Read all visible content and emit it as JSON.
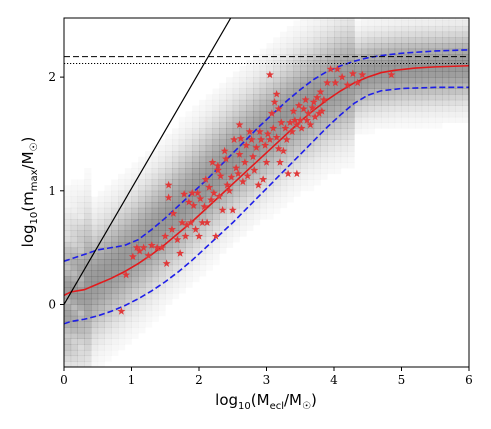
{
  "chart_data": {
    "type": "scatter",
    "title": "",
    "xlabel": {
      "base": "log",
      "sub": "10",
      "open": "(M",
      "subscript": "ecl",
      "slash": "/M",
      "sun": "☉",
      "close": ")"
    },
    "ylabel": {
      "base": "log",
      "sub": "10",
      "open": "(m",
      "subscript": "max",
      "slash": "/M",
      "sun": "☉",
      "close": ")"
    },
    "xlim": [
      0,
      6
    ],
    "ylim": [
      -0.55,
      2.52
    ],
    "xticks": [
      "0",
      "1",
      "2",
      "3",
      "4",
      "5",
      "6"
    ],
    "yticks": [
      "0",
      "1",
      "2"
    ],
    "grid": false,
    "legend": "none",
    "colors": {
      "median": "#e31a1c",
      "band": "#1f1fe8",
      "stars": "#e03a3a",
      "identity": "#000000",
      "density": "#777777"
    },
    "density_background": {
      "description_values": "grey 2D histogram of simulated clusters, darkest along the median ridge",
      "center": [
        [
          0,
          0.05
        ],
        [
          0.5,
          0.22
        ],
        [
          1,
          0.45
        ],
        [
          1.5,
          0.72
        ],
        [
          2,
          1.0
        ],
        [
          2.5,
          1.28
        ],
        [
          3,
          1.52
        ],
        [
          3.5,
          1.74
        ],
        [
          4,
          1.92
        ],
        [
          4.5,
          2.03
        ],
        [
          5,
          2.07
        ],
        [
          6,
          2.1
        ]
      ]
    },
    "series": [
      {
        "kind": "line",
        "style": "solid",
        "color": "#e31a1c",
        "x": [
          0,
          0.1,
          0.2,
          0.3,
          0.5,
          0.7,
          0.9,
          1.1,
          1.3,
          1.5,
          1.7,
          1.9,
          2.1,
          2.3,
          2.5,
          2.7,
          2.9,
          3.1,
          3.3,
          3.5,
          3.7,
          3.9,
          4.1,
          4.3,
          4.5,
          4.7,
          4.9,
          5.2,
          5.5,
          6.0
        ],
        "y": [
          0.08,
          0.11,
          0.12,
          0.13,
          0.18,
          0.23,
          0.29,
          0.36,
          0.44,
          0.53,
          0.63,
          0.73,
          0.84,
          0.95,
          1.06,
          1.17,
          1.28,
          1.39,
          1.5,
          1.61,
          1.71,
          1.8,
          1.88,
          1.95,
          2.0,
          2.04,
          2.06,
          2.08,
          2.09,
          2.1
        ]
      },
      {
        "kind": "line",
        "style": "dashed",
        "color": "#1f1fe8",
        "x": [
          0,
          0.1,
          0.3,
          0.5,
          0.7,
          0.9,
          1.1,
          1.3,
          1.5,
          1.7,
          1.9,
          2.1,
          2.3,
          2.5,
          2.7,
          2.9,
          3.1,
          3.3,
          3.5,
          3.7,
          3.9,
          4.1,
          4.3,
          4.5,
          4.7,
          5.0,
          5.5,
          6.0
        ],
        "y": [
          0.38,
          0.4,
          0.44,
          0.48,
          0.5,
          0.52,
          0.57,
          0.66,
          0.76,
          0.87,
          0.98,
          1.09,
          1.21,
          1.33,
          1.45,
          1.57,
          1.68,
          1.79,
          1.89,
          1.98,
          2.05,
          2.1,
          2.14,
          2.17,
          2.19,
          2.21,
          2.23,
          2.24
        ]
      },
      {
        "kind": "line",
        "style": "dashed",
        "color": "#1f1fe8",
        "x": [
          0,
          0.1,
          0.3,
          0.5,
          0.7,
          0.9,
          1.1,
          1.3,
          1.5,
          1.7,
          1.9,
          2.1,
          2.3,
          2.5,
          2.7,
          2.9,
          3.1,
          3.3,
          3.5,
          3.7,
          3.9,
          4.1,
          4.3,
          4.5,
          4.7,
          5.0,
          5.5,
          6.0
        ],
        "y": [
          -0.17,
          -0.15,
          -0.13,
          -0.1,
          -0.06,
          -0.01,
          0.05,
          0.12,
          0.2,
          0.29,
          0.39,
          0.5,
          0.61,
          0.72,
          0.84,
          0.96,
          1.08,
          1.2,
          1.32,
          1.44,
          1.56,
          1.67,
          1.77,
          1.84,
          1.88,
          1.9,
          1.91,
          1.91
        ]
      },
      {
        "kind": "line",
        "style": "solid",
        "color": "#000000",
        "x": [
          0,
          2.47
        ],
        "y": [
          0,
          2.52
        ]
      },
      {
        "kind": "hline",
        "style": "dashed",
        "color": "#000000",
        "y": 2.18
      },
      {
        "kind": "hline",
        "style": "dotted",
        "color": "#000000",
        "y": 2.12
      },
      {
        "kind": "scatter",
        "marker": "star",
        "color": "#e03a3a",
        "points": [
          [
            0.85,
            -0.06
          ],
          [
            0.92,
            0.26
          ],
          [
            1.02,
            0.42
          ],
          [
            1.08,
            0.5
          ],
          [
            1.12,
            0.47
          ],
          [
            1.18,
            0.5
          ],
          [
            1.25,
            0.43
          ],
          [
            1.3,
            0.52
          ],
          [
            1.38,
            0.5
          ],
          [
            1.45,
            0.5
          ],
          [
            1.5,
            0.6
          ],
          [
            1.52,
            0.36
          ],
          [
            1.55,
            0.94
          ],
          [
            1.55,
            1.05
          ],
          [
            1.6,
            0.66
          ],
          [
            1.62,
            0.8
          ],
          [
            1.68,
            0.57
          ],
          [
            1.72,
            0.45
          ],
          [
            1.75,
            0.72
          ],
          [
            1.78,
            0.97
          ],
          [
            1.8,
            0.6
          ],
          [
            1.82,
            0.7
          ],
          [
            1.85,
            0.9
          ],
          [
            1.88,
            0.72
          ],
          [
            1.9,
            0.98
          ],
          [
            1.92,
            0.87
          ],
          [
            1.95,
            0.66
          ],
          [
            1.98,
            0.98
          ],
          [
            2.0,
            0.6
          ],
          [
            2.02,
            0.93
          ],
          [
            2.05,
            0.72
          ],
          [
            2.08,
            0.86
          ],
          [
            2.1,
            1.1
          ],
          [
            2.12,
            0.72
          ],
          [
            2.15,
            1.03
          ],
          [
            2.18,
            0.92
          ],
          [
            2.2,
            1.25
          ],
          [
            2.22,
            0.98
          ],
          [
            2.25,
            0.6
          ],
          [
            2.28,
            1.18
          ],
          [
            2.3,
            0.95
          ],
          [
            2.32,
            1.13
          ],
          [
            2.35,
            0.83
          ],
          [
            2.38,
            1.35
          ],
          [
            2.4,
            1.28
          ],
          [
            2.42,
            1.05
          ],
          [
            2.45,
            1.0
          ],
          [
            2.48,
            1.12
          ],
          [
            2.5,
            0.83
          ],
          [
            2.52,
            1.45
          ],
          [
            2.55,
            1.2
          ],
          [
            2.58,
            1.15
          ],
          [
            2.6,
            1.32
          ],
          [
            2.62,
            1.46
          ],
          [
            2.65,
            1.08
          ],
          [
            2.68,
            1.25
          ],
          [
            2.7,
            1.4
          ],
          [
            2.72,
            1.13
          ],
          [
            2.75,
            1.52
          ],
          [
            2.78,
            1.45
          ],
          [
            2.8,
            1.3
          ],
          [
            2.82,
            1.18
          ],
          [
            2.85,
            1.38
          ],
          [
            2.88,
            1.05
          ],
          [
            2.9,
            1.52
          ],
          [
            2.92,
            1.45
          ],
          [
            2.95,
            1.1
          ],
          [
            2.98,
            1.4
          ],
          [
            3.0,
            1.25
          ],
          [
            3.02,
            1.5
          ],
          [
            3.05,
            1.45
          ],
          [
            3.08,
            1.68
          ],
          [
            3.1,
            1.55
          ],
          [
            3.12,
            1.78
          ],
          [
            3.15,
            1.47
          ],
          [
            3.18,
            1.37
          ],
          [
            3.2,
            1.25
          ],
          [
            3.22,
            1.6
          ],
          [
            3.25,
            1.35
          ],
          [
            3.28,
            1.55
          ],
          [
            3.3,
            1.45
          ],
          [
            3.32,
            1.15
          ],
          [
            3.35,
            1.6
          ],
          [
            3.38,
            1.52
          ],
          [
            3.4,
            1.7
          ],
          [
            3.42,
            1.62
          ],
          [
            3.45,
            1.58
          ],
          [
            3.48,
            1.75
          ],
          [
            3.5,
            1.62
          ],
          [
            3.52,
            1.55
          ],
          [
            3.55,
            1.72
          ],
          [
            3.58,
            1.8
          ],
          [
            3.6,
            1.62
          ],
          [
            3.62,
            1.68
          ],
          [
            3.65,
            1.58
          ],
          [
            3.68,
            1.73
          ],
          [
            3.7,
            1.78
          ],
          [
            3.72,
            1.65
          ],
          [
            3.75,
            1.82
          ],
          [
            3.78,
            1.68
          ],
          [
            3.8,
            1.87
          ],
          [
            3.82,
            1.7
          ],
          [
            3.85,
            1.8
          ],
          [
            3.9,
            1.95
          ],
          [
            3.95,
            2.07
          ],
          [
            4.02,
            1.95
          ],
          [
            4.05,
            2.07
          ],
          [
            4.12,
            2.0
          ],
          [
            4.2,
            1.93
          ],
          [
            4.28,
            2.03
          ],
          [
            4.35,
            1.95
          ],
          [
            4.42,
            2.02
          ],
          [
            4.85,
            2.02
          ],
          [
            3.05,
            2.02
          ],
          [
            3.15,
            1.85
          ],
          [
            2.28,
            1.22
          ],
          [
            2.6,
            1.58
          ],
          [
            3.45,
            1.15
          ],
          [
            3.18,
            1.72
          ]
        ]
      }
    ]
  }
}
